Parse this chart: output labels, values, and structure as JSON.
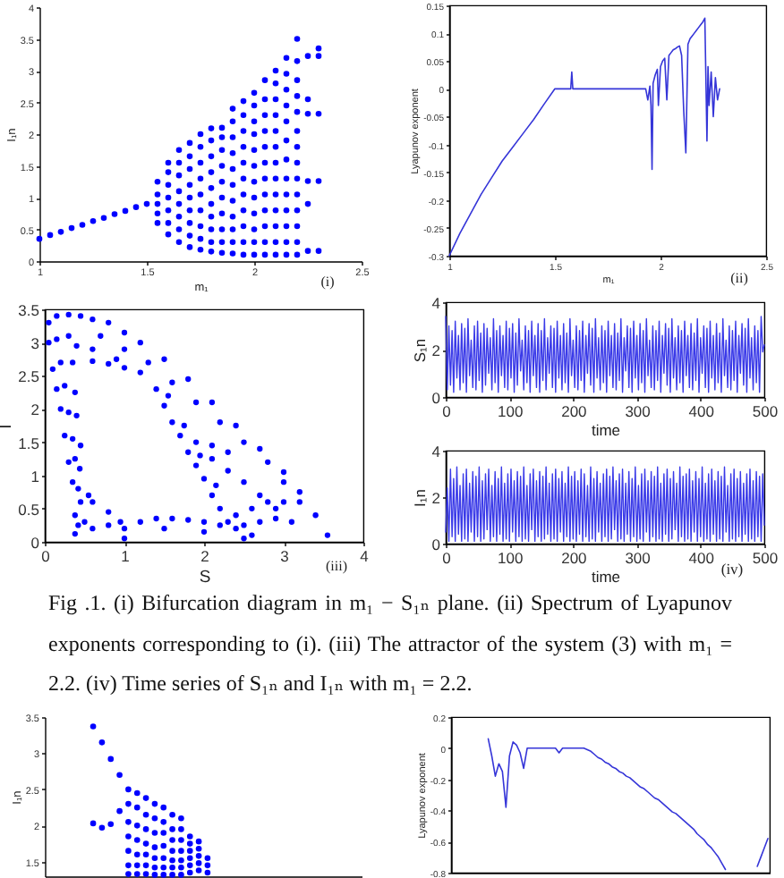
{
  "chart_data": [
    {
      "type": "scatter",
      "xlabel": "m₁",
      "ylabel": "I₁n",
      "annotations": [
        "(i)"
      ],
      "color": "#0000ff",
      "marker": "circle",
      "xlim": [
        1,
        2.5
      ],
      "xticks": [
        1,
        1.5,
        2,
        2.5
      ],
      "ylim": [
        0,
        4
      ],
      "yticks": [
        0,
        0.5,
        1,
        1.5,
        2,
        2.5,
        3,
        3.5,
        4
      ],
      "x": [
        1,
        1.05,
        1.1,
        1.15,
        1.2,
        1.25,
        1.3,
        1.35,
        1.4,
        1.45,
        1.5,
        1.55,
        1.55,
        1.55,
        1.55,
        1.55,
        1.6,
        1.6,
        1.6,
        1.6,
        1.6,
        1.6,
        1.6,
        1.65,
        1.65,
        1.65,
        1.65,
        1.65,
        1.65,
        1.65,
        1.65,
        1.7,
        1.7,
        1.7,
        1.7,
        1.7,
        1.7,
        1.7,
        1.7,
        1.7,
        1.75,
        1.75,
        1.75,
        1.75,
        1.75,
        1.75,
        1.75,
        1.75,
        1.75,
        1.8,
        1.8,
        1.8,
        1.8,
        1.8,
        1.8,
        1.8,
        1.8,
        1.8,
        1.8,
        1.85,
        1.85,
        1.85,
        1.85,
        1.85,
        1.85,
        1.85,
        1.85,
        1.85,
        1.85,
        1.9,
        1.9,
        1.9,
        1.9,
        1.9,
        1.9,
        1.9,
        1.9,
        1.9,
        1.9,
        1.9,
        1.95,
        1.95,
        1.95,
        1.95,
        1.95,
        1.95,
        1.95,
        1.95,
        1.95,
        1.95,
        1.95,
        2,
        2,
        2,
        2,
        2,
        2,
        2,
        2,
        2,
        2,
        2,
        2,
        2.05,
        2.05,
        2.05,
        2.05,
        2.05,
        2.05,
        2.05,
        2.05,
        2.05,
        2.05,
        2.05,
        2.05,
        2.1,
        2.1,
        2.1,
        2.1,
        2.1,
        2.1,
        2.1,
        2.1,
        2.1,
        2.1,
        2.1,
        2.1,
        2.1,
        2.15,
        2.15,
        2.15,
        2.15,
        2.15,
        2.15,
        2.15,
        2.15,
        2.15,
        2.15,
        2.15,
        2.15,
        2.15,
        2.2,
        2.2,
        2.2,
        2.2,
        2.2,
        2.2,
        2.2,
        2.2,
        2.2,
        2.2,
        2.2,
        2.2,
        2.2,
        2.2,
        2.25,
        2.25,
        2.25,
        2.25,
        2.25,
        2.25,
        2.3,
        2.3,
        2.3,
        2.3,
        2.3
      ],
      "values": [
        0.35,
        0.41,
        0.46,
        0.52,
        0.57,
        0.63,
        0.68,
        0.74,
        0.79,
        0.85,
        0.9,
        0.6,
        0.75,
        0.9,
        1.05,
        1.25,
        0.42,
        0.6,
        0.8,
        1,
        1.2,
        1.4,
        1.55,
        0.3,
        0.5,
        0.7,
        0.9,
        1.1,
        1.35,
        1.55,
        1.75,
        0.22,
        0.4,
        0.6,
        0.8,
        1,
        1.2,
        1.45,
        1.65,
        1.86,
        0.18,
        0.35,
        0.55,
        0.8,
        1.05,
        1.3,
        1.55,
        1.8,
        2,
        0.15,
        0.3,
        0.5,
        0.7,
        0.9,
        1.15,
        1.4,
        1.65,
        1.9,
        2.09,
        0.13,
        0.3,
        0.5,
        0.75,
        1,
        1.25,
        1.5,
        1.75,
        1.95,
        2.1,
        0.12,
        0.3,
        0.5,
        0.7,
        0.95,
        1.2,
        1.45,
        1.7,
        1.95,
        2.2,
        2.4,
        0.1,
        0.3,
        0.55,
        0.8,
        1.05,
        1.3,
        1.55,
        1.8,
        2.05,
        2.3,
        2.52,
        0.1,
        0.3,
        0.5,
        0.75,
        1,
        1.25,
        1.5,
        1.75,
        2,
        2.2,
        2.45,
        2.65,
        0.1,
        0.3,
        0.55,
        0.8,
        1.05,
        1.3,
        1.55,
        1.8,
        2.05,
        2.3,
        2.55,
        2.85,
        0.1,
        0.3,
        0.55,
        0.8,
        1.05,
        1.3,
        1.55,
        1.8,
        2.05,
        2.3,
        2.55,
        2.8,
        3,
        0.1,
        0.3,
        0.55,
        0.8,
        1.05,
        1.3,
        1.6,
        1.9,
        2.2,
        2.45,
        2.7,
        2.95,
        3.2,
        0.1,
        0.3,
        0.55,
        0.8,
        1.05,
        1.3,
        1.55,
        1.8,
        2.05,
        2.35,
        2.6,
        2.85,
        3.15,
        3.5,
        0.16,
        0.9,
        1.26,
        2.32,
        2.55,
        3.23,
        0.16,
        1.26,
        2.32,
        3.23,
        3.35
      ]
    },
    {
      "type": "line",
      "xlabel": "m₁",
      "ylabel": "Lyapunov exponent",
      "annotations": [
        "(ii)"
      ],
      "color": "#3535d8",
      "xlim": [
        1,
        2.5
      ],
      "xticks": [
        1,
        1.5,
        2,
        2.5
      ],
      "ylim": [
        -0.3,
        0.15
      ],
      "yticks": [
        -0.3,
        -0.25,
        -0.2,
        -0.15,
        -0.1,
        -0.05,
        0,
        0.05,
        0.1,
        0.15
      ],
      "x": [
        1,
        1.05,
        1.1,
        1.15,
        1.2,
        1.25,
        1.3,
        1.35,
        1.4,
        1.45,
        1.5,
        1.55,
        1.575,
        1.58,
        1.585,
        1.6,
        1.7,
        1.8,
        1.9,
        1.93,
        1.94,
        1.95,
        1.955,
        1.96,
        1.965,
        1.975,
        1.985,
        1.99,
        2,
        2.01,
        2.02,
        2.03,
        2.04,
        2.05,
        2.06,
        2.07,
        2.08,
        2.09,
        2.1,
        2.11,
        2.12,
        2.13,
        2.14,
        2.15,
        2.16,
        2.17,
        2.18,
        2.19,
        2.2,
        2.21,
        2.22,
        2.225,
        2.23,
        2.24,
        2.25,
        2.26,
        2.27,
        2.28
      ],
      "values": [
        -0.3,
        -0.26,
        -0.225,
        -0.19,
        -0.16,
        -0.13,
        -0.105,
        -0.08,
        -0.055,
        -0.027,
        0,
        0,
        0,
        0.03,
        0,
        0,
        0,
        0,
        0,
        0,
        -0.02,
        0.005,
        -0.03,
        -0.145,
        0.01,
        0.025,
        0.035,
        -0.03,
        0.04,
        0.05,
        0.055,
        -0.02,
        0.06,
        0.065,
        0.07,
        0.072,
        0.075,
        0.077,
        0.06,
        -0.04,
        -0.115,
        0.08,
        0.09,
        0.095,
        0.1,
        0.105,
        0.11,
        0.115,
        0.12,
        0.127,
        -0.094,
        0.04,
        -0.03,
        0.03,
        -0.05,
        0.02,
        -0.02,
        0
      ]
    },
    {
      "type": "scatter",
      "xlabel": "S",
      "ylabel": "I",
      "annotations": [
        "(iii)"
      ],
      "color": "#0000ff",
      "marker": "circle",
      "xlim": [
        0,
        4
      ],
      "xticks": [
        0,
        1,
        2,
        3,
        4
      ],
      "ylim": [
        0,
        3.5
      ],
      "yticks": [
        0,
        0.5,
        1,
        1.5,
        2,
        2.5,
        3,
        3.5
      ],
      "x": [
        0.05,
        0.15,
        0.3,
        0.45,
        0.6,
        0.05,
        0.15,
        0.3,
        0.4,
        0.1,
        0.2,
        0.35,
        0.15,
        0.25,
        0.38,
        0.2,
        0.3,
        0.4,
        0.25,
        0.35,
        0.45,
        0.3,
        0.38,
        0.44,
        0.35,
        0.42,
        0.45,
        0.38,
        0.42,
        0.38,
        0.6,
        0.8,
        1,
        1.2,
        0.8,
        1,
        1.2,
        1.5,
        1.8,
        2.1,
        2.4,
        2.7,
        3,
        3.2,
        3.4,
        3.55,
        0.7,
        1,
        1.3,
        1.6,
        1.9,
        2.2,
        2.5,
        2.8,
        3,
        3.2,
        0.6,
        0.9,
        1.9,
        2.1,
        2.3,
        2.1,
        2.3,
        2.5,
        2.7,
        2.9,
        1.4,
        1.5,
        1.6,
        1.7,
        1.8,
        1.9,
        2,
        2.1,
        2.2,
        2.3,
        1.55,
        1.75,
        1.95,
        2.15,
        0.5,
        0.6,
        0.8,
        1,
        1.2,
        1.4,
        1.6,
        1.8,
        2,
        2.2,
        2.4,
        2.6,
        1,
        1.5,
        2,
        2.5,
        0.55,
        0.6,
        0.8,
        0.95,
        2.4,
        2.6,
        2.8,
        3,
        2.7,
        2.9,
        3.1,
        2.5
      ],
      "values": [
        3.3,
        3.4,
        3.42,
        3.4,
        3.35,
        3,
        3.05,
        3.1,
        2.95,
        2.6,
        2.7,
        2.7,
        2.3,
        2.35,
        2.25,
        2,
        1.95,
        1.9,
        1.6,
        1.55,
        1.45,
        1.2,
        1.25,
        1.1,
        0.9,
        0.8,
        0.6,
        0.4,
        0.25,
        0.12,
        2.72,
        2.68,
        2.62,
        2.55,
        3.3,
        3.15,
        3,
        2.75,
        2.45,
        2.1,
        1.75,
        1.4,
        1.05,
        0.75,
        0.4,
        0.1,
        3.1,
        2.9,
        2.7,
        2.4,
        2.1,
        1.8,
        1.5,
        1.2,
        0.9,
        0.6,
        2.9,
        2.75,
        1.5,
        1.45,
        1.35,
        1.25,
        1.07,
        0.9,
        0.7,
        0.5,
        2.3,
        2.05,
        1.8,
        1.6,
        1.35,
        1.15,
        0.95,
        0.7,
        0.5,
        0.3,
        2.2,
        1.75,
        1.3,
        0.85,
        0.3,
        0.2,
        0.25,
        0.2,
        0.3,
        0.35,
        0.35,
        0.33,
        0.3,
        0.25,
        0.2,
        0.1,
        0.05,
        0.2,
        0.15,
        0.05,
        0.7,
        0.6,
        0.45,
        0.3,
        0.4,
        0.5,
        0.6,
        0.6,
        0.3,
        0.35,
        0.3,
        0.25
      ]
    },
    {
      "type": "line",
      "xlabel": "time",
      "ylabel": "S₁n",
      "color": "#3a3ae8",
      "xlim": [
        0,
        500
      ],
      "xticks": [
        0,
        100,
        200,
        300,
        400,
        500
      ],
      "ylim": [
        0,
        4
      ],
      "yticks": [
        0,
        2,
        4
      ],
      "x": [
        0,
        2.5,
        5,
        7.5,
        10,
        12.5,
        15,
        17.5,
        20,
        22.5,
        25,
        27.5,
        30,
        32.5,
        35,
        37.5,
        40,
        42.5,
        45,
        47.5,
        50,
        52.5,
        55,
        57.5,
        60,
        62.5,
        65,
        67.5,
        70,
        72.5,
        75,
        77.5,
        80,
        82.5,
        85,
        87.5,
        90,
        92.5,
        95,
        97.5,
        100,
        102.5,
        105,
        107.5,
        110,
        112.5,
        115,
        117.5,
        120,
        122.5,
        125,
        127.5,
        130,
        132.5,
        135,
        137.5,
        140,
        142.5,
        145,
        147.5,
        150,
        152.5,
        155,
        157.5,
        160,
        162.5,
        165,
        167.5,
        170,
        172.5,
        175,
        177.5,
        180,
        182.5,
        185,
        187.5,
        190,
        192.5,
        195,
        197.5,
        200,
        202.5,
        205,
        207.5,
        210,
        212.5,
        215,
        217.5,
        220,
        222.5,
        225,
        227.5,
        230,
        232.5,
        235,
        237.5,
        240,
        242.5,
        245,
        247.5,
        250,
        252.5,
        255,
        257.5,
        260,
        262.5,
        265,
        267.5,
        270,
        272.5,
        275,
        277.5,
        280,
        282.5,
        285,
        287.5,
        290,
        292.5,
        295,
        297.5,
        300,
        302.5,
        305,
        307.5,
        310,
        312.5,
        315,
        317.5,
        320,
        322.5,
        325,
        327.5,
        330,
        332.5,
        335,
        337.5,
        340,
        342.5,
        345,
        347.5,
        350,
        352.5,
        355,
        357.5,
        360,
        362.5,
        365,
        367.5,
        370,
        372.5,
        375,
        377.5,
        380,
        382.5,
        385,
        387.5,
        390,
        392.5,
        395,
        397.5,
        400,
        402.5,
        405,
        407.5,
        410,
        412.5,
        415,
        417.5,
        420,
        422.5,
        425,
        427.5,
        430,
        432.5,
        435,
        437.5,
        440,
        442.5,
        445,
        447.5,
        450,
        452.5,
        455,
        457.5,
        460,
        462.5,
        465,
        467.5,
        470,
        472.5,
        475,
        477.5,
        480,
        482.5,
        485,
        487.5,
        490,
        492.5,
        495,
        497.5,
        500
      ],
      "values": [
        3.4,
        0.3,
        3,
        0.5,
        2.8,
        0.2,
        3.2,
        0.8,
        2.6,
        0.3,
        3.1,
        0.6,
        2.9,
        0.2,
        3.3,
        0.9,
        2.4,
        0.4,
        3,
        0.3,
        3.2,
        0.7,
        2.7,
        0.2,
        3.1,
        0.5,
        2.9,
        1,
        2.5,
        0.3,
        3.3,
        0.6,
        2.8,
        0.2,
        3,
        0.9,
        2.6,
        0.4,
        3.2,
        0.3,
        2.9,
        0.8,
        3.1,
        0.2,
        2.7,
        0.5,
        3.3,
        1.1,
        2.4,
        0.3,
        3,
        0.6,
        2.8,
        0.2,
        3.2,
        0.9,
        2.6,
        0.4,
        3.1,
        0.2,
        2.8,
        0.7,
        3.3,
        0.3,
        2.5,
        1,
        3,
        0.4,
        2.9,
        0.2,
        3.2,
        0.8,
        2.6,
        0.3,
        3.1,
        0.6,
        2.7,
        0.2,
        3.3,
        0.9,
        2.4,
        0.4,
        3,
        0.3,
        2.8,
        0.7,
        3.2,
        0.2,
        2.6,
        1,
        3.1,
        0.5,
        2.9,
        0.2,
        3.3,
        0.8,
        2.5,
        0.3,
        3,
        0.6,
        2.8,
        0.2,
        3.2,
        0.9,
        2.6,
        0.4,
        3.1,
        0.3,
        2.7,
        0.7,
        3.3,
        0.2,
        2.5,
        1.1,
        3,
        0.4,
        2.9,
        0.2,
        3.2,
        0.8,
        2.6,
        0.3,
        3.1,
        0.6,
        2.8,
        0.2,
        3.3,
        0.9,
        2.4,
        0.4,
        3,
        0.3,
        2.8,
        0.7,
        3.2,
        0.2,
        2.6,
        1,
        3.1,
        0.5,
        2.9,
        0.2,
        3.3,
        0.8,
        2.5,
        0.3,
        3,
        0.6,
        2.8,
        0.2,
        3.2,
        0.9,
        2.6,
        0.4,
        3.1,
        0.3,
        2.7,
        0.7,
        3.3,
        0.2,
        2.5,
        1,
        3,
        0.4,
        2.9,
        0.2,
        3.2,
        0.8,
        2.6,
        0.3,
        3.1,
        0.6,
        2.7,
        0.2,
        3.3,
        0.9,
        2.4,
        0.4,
        3,
        0.3,
        2.8,
        0.7,
        3.2,
        0.2,
        2.6,
        1,
        3.1,
        0.5,
        2.9,
        0.2,
        3.3,
        0.8,
        2.5,
        0.3,
        3,
        0.6,
        2.8,
        0.2,
        3.4,
        1.9,
        2.2
      ]
    },
    {
      "type": "line",
      "xlabel": "time",
      "ylabel": "I₁n",
      "annotations": [
        "(iv)"
      ],
      "color": "#3a3ae8",
      "xlim": [
        0,
        500
      ],
      "xticks": [
        0,
        100,
        200,
        300,
        400,
        500
      ],
      "ylim": [
        0,
        4
      ],
      "yticks": [
        0,
        2,
        4
      ],
      "x": [
        0,
        2.5,
        5,
        7.5,
        10,
        12.5,
        15,
        17.5,
        20,
        22.5,
        25,
        27.5,
        30,
        32.5,
        35,
        37.5,
        40,
        42.5,
        45,
        47.5,
        50,
        52.5,
        55,
        57.5,
        60,
        62.5,
        65,
        67.5,
        70,
        72.5,
        75,
        77.5,
        80,
        82.5,
        85,
        87.5,
        90,
        92.5,
        95,
        97.5,
        100,
        102.5,
        105,
        107.5,
        110,
        112.5,
        115,
        117.5,
        120,
        122.5,
        125,
        127.5,
        130,
        132.5,
        135,
        137.5,
        140,
        142.5,
        145,
        147.5,
        150,
        152.5,
        155,
        157.5,
        160,
        162.5,
        165,
        167.5,
        170,
        172.5,
        175,
        177.5,
        180,
        182.5,
        185,
        187.5,
        190,
        192.5,
        195,
        197.5,
        200,
        202.5,
        205,
        207.5,
        210,
        212.5,
        215,
        217.5,
        220,
        222.5,
        225,
        227.5,
        230,
        232.5,
        235,
        237.5,
        240,
        242.5,
        245,
        247.5,
        250,
        252.5,
        255,
        257.5,
        260,
        262.5,
        265,
        267.5,
        270,
        272.5,
        275,
        277.5,
        280,
        282.5,
        285,
        287.5,
        290,
        292.5,
        295,
        297.5,
        300,
        302.5,
        305,
        307.5,
        310,
        312.5,
        315,
        317.5,
        320,
        322.5,
        325,
        327.5,
        330,
        332.5,
        335,
        337.5,
        340,
        342.5,
        345,
        347.5,
        350,
        352.5,
        355,
        357.5,
        360,
        362.5,
        365,
        367.5,
        370,
        372.5,
        375,
        377.5,
        380,
        382.5,
        385,
        387.5,
        390,
        392.5,
        395,
        397.5,
        400,
        402.5,
        405,
        407.5,
        410,
        412.5,
        415,
        417.5,
        420,
        422.5,
        425,
        427.5,
        430,
        432.5,
        435,
        437.5,
        440,
        442.5,
        445,
        447.5,
        450,
        452.5,
        455,
        457.5,
        460,
        462.5,
        465,
        467.5,
        470,
        472.5,
        475,
        477.5,
        480,
        482.5,
        485,
        487.5,
        490,
        492.5,
        495,
        497.5,
        500
      ],
      "values": [
        0.5,
        2.4,
        0.1,
        3.2,
        0.3,
        2.8,
        0.1,
        3.3,
        0.4,
        2.5,
        0.1,
        3,
        0.2,
        3.2,
        0.1,
        2.6,
        0.5,
        3.1,
        0.1,
        2.9,
        0.3,
        3.3,
        0.1,
        2.7,
        0.2,
        3,
        0.6,
        3.2,
        0.1,
        2.5,
        0.3,
        3.1,
        0.1,
        2.8,
        0.4,
        3.3,
        0.1,
        2.6,
        0.2,
        3,
        0.1,
        3.2,
        0.5,
        2.7,
        0.1,
        3.1,
        0.3,
        2.9,
        0.1,
        3.3,
        0.2,
        2.5,
        0.1,
        3,
        0.6,
        3.2,
        0.1,
        2.7,
        0.3,
        3.1,
        0.1,
        2.9,
        0.2,
        3.3,
        0.4,
        2.6,
        0.1,
        3,
        0.2,
        3.2,
        0.1,
        2.8,
        0.5,
        3.1,
        0.1,
        2.6,
        0.3,
        3.3,
        0.1,
        2.9,
        0.2,
        3.1,
        0.1,
        2.7,
        0.4,
        3.2,
        0.1,
        3,
        0.3,
        2.5,
        0.1,
        3.3,
        0.2,
        2.8,
        0.1,
        3.1,
        0.5,
        2.6,
        0.1,
        3,
        0.3,
        3.2,
        0.1,
        2.9,
        0.2,
        3.3,
        0.6,
        2.7,
        0.1,
        3,
        0.2,
        3.2,
        0.1,
        2.6,
        0.4,
        3.1,
        0.1,
        2.8,
        0.3,
        3.3,
        0.1,
        2.5,
        0.2,
        3,
        0.1,
        3.2,
        0.5,
        2.7,
        0.1,
        3.1,
        0.3,
        2.9,
        0.1,
        3.3,
        0.2,
        2.6,
        0.1,
        3,
        0.4,
        3.2,
        0.1,
        2.8,
        0.2,
        3.1,
        0.6,
        2.6,
        0.1,
        3.3,
        0.3,
        2.9,
        0.1,
        3,
        0.2,
        3.2,
        0.1,
        2.7,
        0.5,
        3.1,
        0.1,
        2.8,
        0.3,
        3.3,
        0.1,
        2.6,
        0.2,
        3,
        0.1,
        3.2,
        0.4,
        2.7,
        0.1,
        3.1,
        0.2,
        2.9,
        0.1,
        3.3,
        0.5,
        2.5,
        0.1,
        3,
        0.2,
        3.2,
        0.1,
        2.8,
        0.3,
        3.1,
        0.1,
        2.6,
        0.4,
        3,
        0.1,
        3.2,
        0.2,
        2.7,
        0.1,
        3.1,
        0.3,
        2.9,
        0.1,
        3,
        0.8
      ]
    },
    {
      "type": "other",
      "annotations": [
        "Fig .1. (i) Bifurcation diagram in m₁ − S₁ₙ plane. (ii) Spectrum of Lyapunov exponents corresponding to (i). (iii) The attractor of the system (3) with m₁ = 2.2. (iv) Time series of S₁ₙ and I₁ₙ with m₁ = 2.2."
      ]
    },
    {
      "type": "scatter",
      "ylabel": "I₁n",
      "marker": "circle",
      "tick_labels": "y",
      "categories": [
        null,
        null,
        null,
        null,
        null,
        null,
        null,
        null,
        null,
        null,
        null,
        null,
        null,
        null,
        null,
        null,
        null,
        null,
        null,
        null,
        null,
        null,
        null,
        null,
        null,
        null,
        null,
        null,
        null,
        null,
        null,
        null,
        null,
        null,
        null,
        null
      ],
      "ylim": [
        1.3,
        3.5
      ],
      "yticks": [
        1.5,
        2,
        2.5,
        3,
        3.5
      ],
      "series": [
        {
          "color": "#0000ff",
          "values": [
            null,
            null,
            null,
            null,
            null,
            3.37,
            3.15,
            2.92,
            2.7,
            null,
            null,
            null,
            null,
            null,
            null,
            null,
            null,
            null,
            null,
            null,
            null,
            null,
            null,
            null,
            null,
            null,
            null,
            null,
            null,
            null,
            null,
            null,
            null,
            null,
            null,
            null
          ]
        },
        {
          "color": "#0000ff",
          "values": [
            null,
            null,
            null,
            null,
            null,
            2.03,
            1.97,
            2.02,
            2.2,
            null,
            null,
            null,
            null,
            null,
            null,
            null,
            null,
            null,
            null,
            null,
            null,
            null,
            null,
            null,
            null,
            null,
            null,
            null,
            null,
            null,
            null,
            null,
            null,
            null,
            null,
            null
          ]
        },
        {
          "color": "#0000ff",
          "values": [
            null,
            null,
            null,
            null,
            null,
            null,
            null,
            null,
            null,
            2.5,
            2.45,
            2.38,
            2.3,
            2.25,
            2.15,
            2.1,
            1.85,
            1.78,
            1.55,
            null,
            null,
            null,
            null,
            null,
            null,
            null,
            null,
            null,
            null,
            null,
            null,
            null,
            null,
            null,
            null,
            null
          ]
        },
        {
          "color": "#0000ff",
          "values": [
            null,
            null,
            null,
            null,
            null,
            null,
            null,
            null,
            null,
            2.3,
            2.25,
            2.15,
            2.1,
            2.05,
            1.95,
            1.95,
            1.75,
            1.68,
            1.45,
            null,
            null,
            null,
            null,
            null,
            null,
            null,
            null,
            null,
            null,
            null,
            null,
            null,
            null,
            null,
            null,
            null
          ]
        },
        {
          "color": "#0000ff",
          "values": [
            null,
            null,
            null,
            null,
            null,
            null,
            null,
            null,
            null,
            2.05,
            2,
            1.95,
            1.9,
            1.9,
            1.8,
            1.8,
            1.65,
            1.58,
            1.35,
            null,
            null,
            null,
            null,
            null,
            null,
            null,
            null,
            null,
            null,
            null,
            null,
            null,
            null,
            null,
            null,
            null
          ]
        },
        {
          "color": "#0000ff",
          "values": [
            null,
            null,
            null,
            null,
            null,
            null,
            null,
            null,
            null,
            1.85,
            1.8,
            1.75,
            1.7,
            1.72,
            1.65,
            1.65,
            1.55,
            1.48,
            null,
            null,
            null,
            null,
            null,
            null,
            null,
            null,
            null,
            null,
            null,
            null,
            null,
            null,
            null,
            null,
            null,
            null
          ]
        },
        {
          "color": "#0000ff",
          "values": [
            null,
            null,
            null,
            null,
            null,
            null,
            null,
            null,
            null,
            1.65,
            1.6,
            1.6,
            1.55,
            1.55,
            1.52,
            1.52,
            1.45,
            1.38,
            null,
            null,
            null,
            null,
            null,
            null,
            null,
            null,
            null,
            null,
            null,
            null,
            null,
            null,
            null,
            null,
            null,
            null
          ]
        },
        {
          "color": "#0000ff",
          "values": [
            null,
            null,
            null,
            null,
            null,
            null,
            null,
            null,
            null,
            1.45,
            1.45,
            1.45,
            1.42,
            1.42,
            1.42,
            1.42,
            1.35,
            null,
            null,
            null,
            null,
            null,
            null,
            null,
            null,
            null,
            null,
            null,
            null,
            null,
            null,
            null,
            null,
            null,
            null,
            null
          ]
        },
        {
          "color": "#0000ff",
          "values": [
            null,
            null,
            null,
            null,
            null,
            null,
            null,
            null,
            null,
            1.33,
            1.33,
            1.33,
            1.32,
            1.32,
            1.32,
            1.32,
            null,
            null,
            null,
            null,
            null,
            null,
            null,
            null,
            null,
            null,
            null,
            null,
            null,
            null,
            null,
            null,
            null,
            null,
            null,
            null
          ]
        }
      ]
    },
    {
      "type": "line",
      "ylabel": "Lyapunov exponent",
      "tick_labels": "y",
      "categories": [
        null,
        null,
        null,
        null,
        null,
        null,
        null,
        null,
        null,
        null,
        null,
        null,
        null,
        null,
        null,
        null,
        null,
        null,
        null,
        null,
        null,
        null,
        null,
        null,
        null,
        null,
        null,
        null,
        null,
        null,
        null,
        null,
        null,
        null,
        null,
        null,
        null,
        null,
        null,
        null,
        null,
        null,
        null,
        null,
        null,
        null,
        null,
        null,
        null,
        null,
        null,
        null,
        null,
        null,
        null,
        null,
        null,
        null,
        null,
        null,
        null,
        null,
        null,
        null,
        null,
        null,
        null,
        null,
        null,
        null,
        null,
        null,
        null,
        null,
        null,
        null,
        null,
        null,
        null,
        null,
        null,
        null,
        null,
        null,
        null,
        null,
        null,
        null,
        null,
        null
      ],
      "ylim": [
        -0.8,
        0.2
      ],
      "yticks": [
        -0.8,
        -0.6,
        -0.4,
        -0.2,
        0,
        0.2
      ],
      "series": [
        {
          "color": "#3535d8",
          "values": [
            null,
            null,
            null,
            null,
            null,
            null,
            null,
            null,
            null,
            null,
            0.06,
            -0.05,
            -0.18,
            -0.1,
            -0.15,
            -0.38,
            -0.05,
            0.04,
            0.02,
            -0.03,
            -0.13,
            0,
            0,
            0,
            0,
            0,
            0,
            0,
            0,
            0,
            -0.03,
            0,
            0,
            0,
            0,
            0,
            0,
            0,
            -0.01,
            -0.02,
            -0.04,
            -0.06,
            -0.07,
            -0.09,
            -0.1,
            -0.12,
            -0.13,
            -0.15,
            -0.16,
            -0.18,
            -0.19,
            -0.21,
            -0.23,
            -0.25,
            -0.26,
            -0.28,
            -0.3,
            -0.32,
            -0.33,
            -0.35,
            -0.37,
            -0.39,
            -0.41,
            -0.42,
            -0.44,
            -0.46,
            -0.48,
            -0.5,
            -0.52,
            -0.55,
            -0.57,
            -0.59,
            -0.62,
            -0.64,
            -0.67,
            -0.7,
            -0.74,
            -0.78,
            null,
            null,
            null,
            null,
            null,
            null,
            null,
            null,
            null,
            null,
            null,
            null
          ]
        },
        {
          "color": "#3535d8",
          "values": [
            null,
            null,
            null,
            null,
            null,
            null,
            null,
            null,
            null,
            null,
            null,
            null,
            null,
            null,
            null,
            null,
            null,
            null,
            null,
            null,
            null,
            null,
            null,
            null,
            null,
            null,
            null,
            null,
            null,
            null,
            null,
            null,
            null,
            null,
            null,
            null,
            null,
            null,
            null,
            null,
            null,
            null,
            null,
            null,
            null,
            null,
            null,
            null,
            null,
            null,
            null,
            null,
            null,
            null,
            null,
            null,
            null,
            null,
            null,
            null,
            null,
            null,
            null,
            null,
            null,
            null,
            null,
            null,
            null,
            null,
            null,
            null,
            null,
            null,
            null,
            null,
            null,
            null,
            null,
            null,
            null,
            null,
            null,
            null,
            null,
            null,
            -0.76,
            -0.7,
            -0.64,
            -0.58
          ]
        }
      ]
    }
  ]
}
